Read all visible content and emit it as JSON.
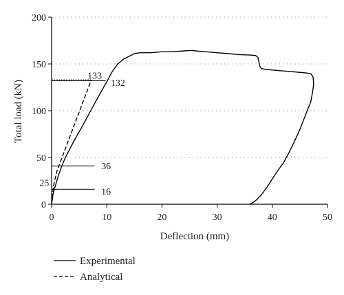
{
  "chart_data": {
    "type": "line",
    "title": "",
    "xlabel": "Deflection (mm)",
    "ylabel": "Total load (kN)",
    "xlim": [
      0,
      50
    ],
    "ylim": [
      0,
      200
    ],
    "xticks": [
      0,
      10,
      20,
      30,
      40,
      50
    ],
    "yticks": [
      0,
      50,
      100,
      150,
      200
    ],
    "grid": "dotted horizontal at y ticks",
    "legend_placement": "bottom-left",
    "series": [
      {
        "name": "Experimental",
        "style": "solid",
        "color": "#000000",
        "x": [
          0,
          0.3,
          0.7,
          1.2,
          1.8,
          2.5,
          4,
          6,
          8,
          10,
          11,
          12,
          13,
          14,
          15,
          16,
          18,
          20,
          22,
          24,
          25.5,
          26,
          28,
          30,
          32,
          34,
          36,
          37,
          37.4,
          37.7,
          38,
          39,
          40,
          42,
          44,
          46,
          47,
          47.4,
          47.5,
          47.3,
          47,
          46,
          45,
          44,
          43,
          42,
          41,
          40,
          39,
          38,
          37,
          36.3,
          35.8
        ],
        "y": [
          0,
          12,
          20,
          30,
          40,
          50,
          67,
          88,
          110,
          131,
          142,
          150,
          155,
          158,
          161,
          162,
          162,
          163,
          163,
          164,
          164.5,
          164,
          163,
          162,
          161,
          160,
          159.5,
          159,
          157,
          148,
          145,
          144,
          143.5,
          142.5,
          141.5,
          140.5,
          139.5,
          136,
          128,
          120,
          110,
          95,
          80,
          67,
          55,
          44,
          36,
          27,
          18,
          10,
          4,
          1,
          0
        ]
      },
      {
        "name": "Analytical",
        "style": "dashed",
        "color": "#000000",
        "x": [
          0,
          0.35,
          1.0,
          7.2
        ],
        "y": [
          0,
          20,
          36,
          133
        ]
      }
    ],
    "annotations": [
      {
        "text": "133",
        "x": 6.5,
        "y": 138,
        "color": "#8a9a9a"
      },
      {
        "text": "132",
        "x": 10.7,
        "y": 130,
        "color": "#222222"
      },
      {
        "text": "36",
        "x": 9,
        "y": 41,
        "color": "#222222"
      },
      {
        "text": "25",
        "x": -2.2,
        "y": 23,
        "color": "#8a9a9a"
      },
      {
        "text": "16",
        "x": 9,
        "y": 14,
        "color": "#222222"
      }
    ],
    "reference_lines": [
      {
        "y": 133,
        "x_to": 7.2,
        "style": "dotted"
      },
      {
        "y": 132,
        "x_to": 9.8,
        "style": "solid"
      },
      {
        "y": 41,
        "x_to": 7.8,
        "style": "solid"
      },
      {
        "y": 16,
        "x_to": 7.8,
        "style": "solid"
      }
    ]
  }
}
